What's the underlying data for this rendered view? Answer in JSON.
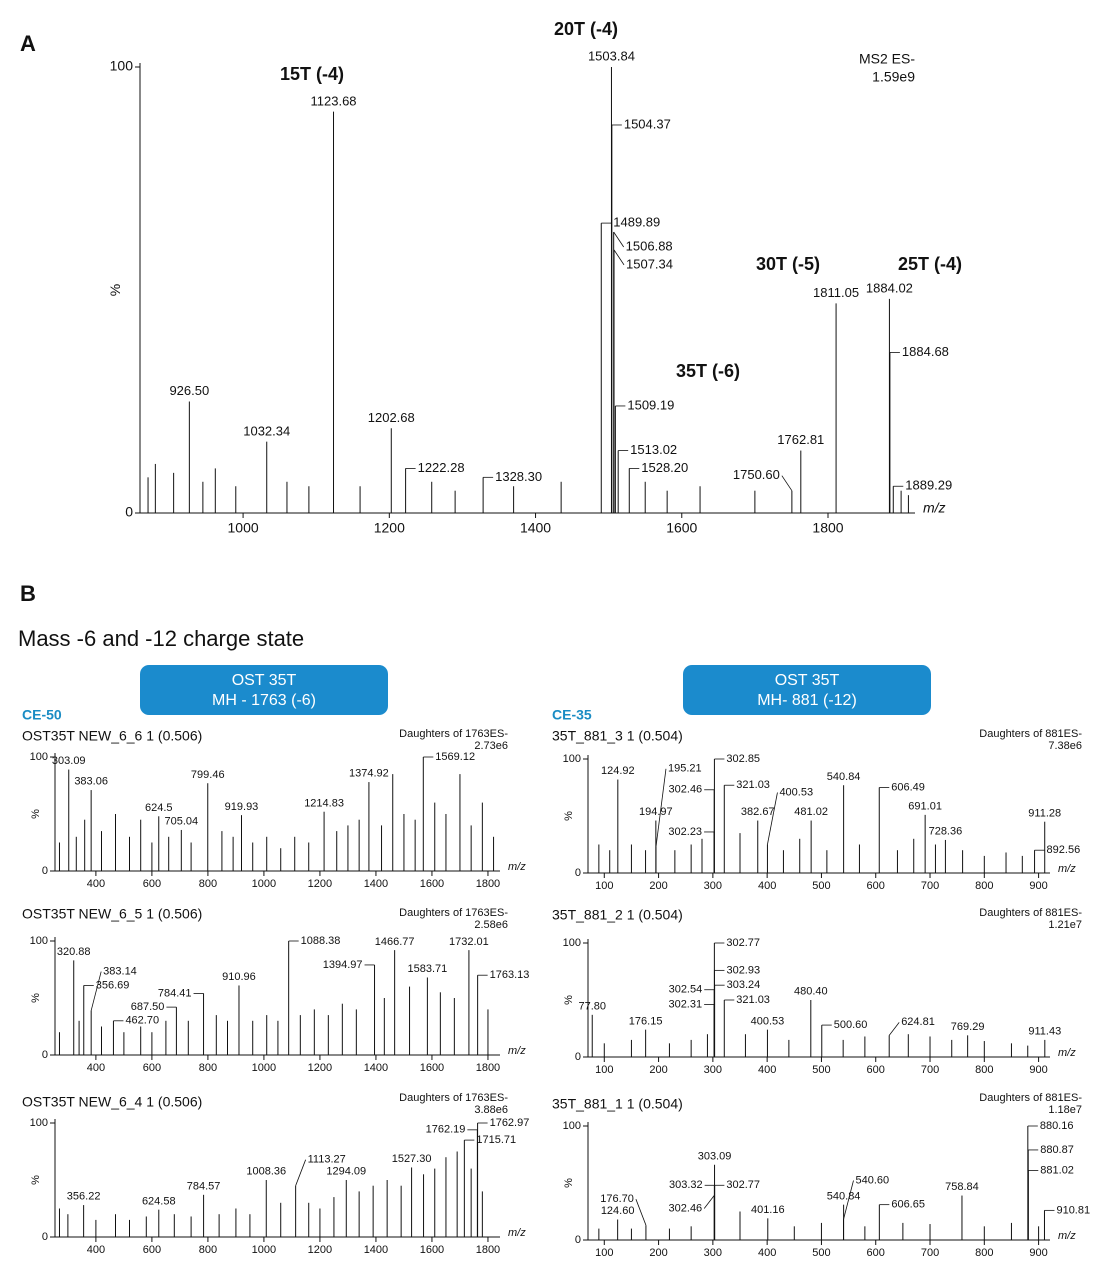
{
  "figure_labels": [
    "A",
    "B"
  ],
  "section_title": "Mass -6 and -12 charge state",
  "groups": [
    {
      "header": [
        "OST 35T",
        "MH - 1763 (-6)"
      ],
      "condition": "CE-50"
    },
    {
      "header": [
        "OST 35T",
        "MH- 881 (-12)"
      ],
      "condition": "CE-35"
    }
  ],
  "chart_data": [
    {
      "type": "spectrum",
      "info": [
        "MS2 ES-",
        "1.59e9"
      ],
      "annotations": [
        "15T (-4)",
        "20T (-4)",
        "30T (-5)",
        "25T (-4)",
        "35T (-6)"
      ],
      "annotation_color": "#1a8cc4",
      "xlabel": "m/z",
      "ylabel": "%",
      "color": "#111111",
      "xlim": [
        859,
        1919
      ],
      "xticks": [
        1000,
        1200,
        1400,
        1600,
        1800
      ],
      "ylim": [
        0,
        100
      ],
      "yticks": [
        0,
        100
      ],
      "x": [
        870,
        880,
        905,
        926.5,
        945,
        962,
        990,
        1032.34,
        1060,
        1090,
        1123.68,
        1160,
        1202.68,
        1222.28,
        1258,
        1290,
        1328.3,
        1370,
        1435,
        1489.89,
        1503.84,
        1504.37,
        1506.88,
        1507.34,
        1509.19,
        1513.02,
        1528.2,
        1550,
        1580,
        1625,
        1700,
        1750.6,
        1762.81,
        1811.05,
        1884.02,
        1884.68,
        1889.29,
        1900,
        1910
      ],
      "values": [
        8,
        11,
        9,
        25,
        7,
        10,
        6,
        16,
        7,
        6,
        90,
        6,
        19,
        10,
        7,
        5,
        8,
        6,
        7,
        65,
        100,
        87,
        63,
        59,
        24,
        14,
        10,
        7,
        5,
        6,
        5,
        5,
        14,
        47,
        48,
        36,
        6,
        5,
        4
      ],
      "peak_labels": [
        null,
        null,
        null,
        "926.50",
        null,
        null,
        null,
        "1032.34",
        null,
        null,
        "1123.68",
        null,
        "1202.68",
        "1222.28",
        null,
        null,
        "1328.30",
        null,
        null,
        "1489.89",
        "1503.84",
        "1504.37",
        "1506.88",
        "1507.34",
        "1509.19",
        "1513.02",
        "1528.20",
        null,
        null,
        null,
        null,
        "1750.60",
        "1762.81",
        "1811.05",
        "1884.02",
        "1884.68",
        "1889.29",
        null,
        null
      ]
    },
    {
      "type": "spectrum",
      "title": "OST35T NEW_6_6 1 (0.506)",
      "info": [
        "Daughters of 1763ES-",
        "2.73e6"
      ],
      "xlabel": "m/z",
      "ylabel": "%",
      "color": "#111111",
      "xlim": [
        254,
        1843
      ],
      "xticks": [
        400,
        600,
        800,
        1000,
        1200,
        1400,
        1600,
        1800
      ],
      "ylim": [
        0,
        100
      ],
      "yticks": [
        0,
        100
      ],
      "x": [
        270,
        303.09,
        330,
        360,
        383.06,
        420,
        470,
        520,
        560,
        600,
        624.5,
        660,
        705.04,
        740,
        799.46,
        850,
        890,
        919.93,
        960,
        1010,
        1060,
        1110,
        1160,
        1214.83,
        1260,
        1300,
        1340,
        1374.92,
        1420,
        1460,
        1500,
        1540,
        1569.12,
        1610,
        1650,
        1700,
        1740,
        1780,
        1820
      ],
      "values": [
        25,
        89,
        30,
        45,
        71,
        35,
        50,
        30,
        45,
        25,
        48,
        30,
        36,
        25,
        77,
        35,
        30,
        49,
        25,
        30,
        20,
        30,
        25,
        52,
        35,
        40,
        45,
        78,
        40,
        85,
        50,
        45,
        100,
        60,
        50,
        85,
        40,
        60,
        30
      ],
      "peak_labels": [
        null,
        "303.09",
        null,
        null,
        "383.06",
        null,
        null,
        null,
        null,
        null,
        "624.5",
        null,
        "705.04",
        null,
        "799.46",
        null,
        null,
        "919.93",
        null,
        null,
        null,
        null,
        null,
        "1214.83",
        null,
        null,
        null,
        "1374.92",
        null,
        null,
        null,
        null,
        "1569.12",
        null,
        null,
        null,
        null,
        null,
        null
      ]
    },
    {
      "type": "spectrum",
      "title": "OST35T NEW_6_5 1 (0.506)",
      "info": [
        "Daughters of 1763ES-",
        "2.58e6"
      ],
      "xlabel": "m/z",
      "ylabel": "%",
      "color": "#111111",
      "xlim": [
        254,
        1843
      ],
      "xticks": [
        400,
        600,
        800,
        1000,
        1200,
        1400,
        1600,
        1800
      ],
      "ylim": [
        0,
        100
      ],
      "yticks": [
        0,
        100
      ],
      "x": [
        270,
        320.88,
        340,
        356.69,
        383.14,
        420,
        462.7,
        500,
        560,
        600,
        650,
        687.5,
        730,
        784.41,
        830,
        870,
        910.96,
        960,
        1010,
        1050,
        1088.38,
        1130,
        1180,
        1230,
        1280,
        1330,
        1394.97,
        1430,
        1466.77,
        1520,
        1583.71,
        1630,
        1680,
        1732.01,
        1763.13,
        1800
      ],
      "values": [
        20,
        83,
        30,
        61,
        39,
        25,
        30,
        20,
        25,
        20,
        30,
        42,
        30,
        54,
        35,
        30,
        61,
        30,
        35,
        30,
        100,
        35,
        40,
        35,
        45,
        40,
        79,
        50,
        92,
        60,
        68,
        55,
        50,
        92,
        70,
        40
      ],
      "peak_labels": [
        null,
        "320.88",
        null,
        "356.69",
        "383.14",
        null,
        "462.70",
        null,
        null,
        null,
        null,
        "687.50",
        null,
        "784.41",
        null,
        null,
        "910.96",
        null,
        null,
        null,
        "1088.38",
        null,
        null,
        null,
        null,
        null,
        "1394.97",
        null,
        "1466.77",
        null,
        "1583.71",
        null,
        null,
        "1732.01",
        "1763.13",
        null
      ]
    },
    {
      "type": "spectrum",
      "title": "OST35T NEW_6_4 1 (0.506)",
      "info": [
        "Daughters of 1763ES-",
        "3.88e6"
      ],
      "xlabel": "m/z",
      "ylabel": "%",
      "color": "#111111",
      "xlim": [
        254,
        1843
      ],
      "xticks": [
        400,
        600,
        800,
        1000,
        1200,
        1400,
        1600,
        1800
      ],
      "ylim": [
        0,
        100
      ],
      "yticks": [
        0,
        100
      ],
      "x": [
        270,
        300,
        356.22,
        400,
        470,
        520,
        580,
        624.58,
        680,
        740,
        784.57,
        840,
        900,
        950,
        1008.36,
        1060,
        1113.27,
        1160,
        1200,
        1250,
        1294.09,
        1340,
        1390,
        1440,
        1490,
        1527.3,
        1570,
        1610,
        1650,
        1690,
        1715.71,
        1740,
        1762.19,
        1762.97,
        1780
      ],
      "values": [
        25,
        20,
        28,
        15,
        20,
        15,
        18,
        24,
        20,
        18,
        37,
        20,
        25,
        20,
        50,
        30,
        45,
        30,
        25,
        35,
        50,
        40,
        45,
        50,
        45,
        61,
        55,
        60,
        70,
        75,
        85,
        60,
        94,
        100,
        40
      ],
      "peak_labels": [
        null,
        null,
        "356.22",
        null,
        null,
        null,
        null,
        "624.58",
        null,
        null,
        "784.57",
        null,
        null,
        null,
        "1008.36",
        null,
        "1113.27",
        null,
        null,
        null,
        "1294.09",
        null,
        null,
        null,
        null,
        "1527.30",
        null,
        null,
        null,
        null,
        "1715.71",
        null,
        "1762.19",
        "1762.97",
        null
      ]
    },
    {
      "type": "spectrum",
      "title": "35T_881_3 1 (0.504)",
      "info": [
        "Daughters of 881ES-",
        "7.38e6"
      ],
      "xlabel": "m/z",
      "ylabel": "%",
      "color": "#111111",
      "xlim": [
        70,
        921
      ],
      "xticks": [
        100,
        200,
        300,
        400,
        500,
        600,
        700,
        800,
        900
      ],
      "ylim": [
        0,
        100
      ],
      "yticks": [
        0,
        100
      ],
      "x": [
        90,
        110,
        124.92,
        150,
        176,
        194.97,
        195.21,
        230,
        260,
        280,
        302.23,
        302.46,
        302.85,
        321.03,
        350,
        382.67,
        400.53,
        430,
        460,
        481.02,
        510,
        540.84,
        570,
        606.49,
        640,
        670,
        691.01,
        710,
        728.36,
        760,
        800,
        840,
        870,
        892.56,
        911.28
      ],
      "values": [
        25,
        20,
        82,
        25,
        20,
        46,
        23,
        20,
        25,
        30,
        36,
        73,
        100,
        77,
        35,
        46,
        25,
        20,
        30,
        46,
        20,
        77,
        25,
        75,
        20,
        30,
        51,
        25,
        29,
        20,
        15,
        18,
        15,
        20,
        45
      ],
      "peak_labels": [
        null,
        null,
        "124.92",
        null,
        null,
        "194.97",
        "195.21",
        null,
        null,
        null,
        "302.23",
        "302.46",
        "302.85",
        "321.03",
        null,
        "382.67",
        "400.53",
        null,
        null,
        "481.02",
        null,
        "540.84",
        null,
        "606.49",
        null,
        null,
        "691.01",
        null,
        "728.36",
        null,
        null,
        null,
        null,
        "892.56",
        "911.28"
      ]
    },
    {
      "type": "spectrum",
      "title": "35T_881_2 1 (0.504)",
      "info": [
        "Daughters of 881ES-",
        "1.21e7"
      ],
      "xlabel": "m/z",
      "ylabel": "%",
      "color": "#111111",
      "xlim": [
        70,
        921
      ],
      "xticks": [
        100,
        200,
        300,
        400,
        500,
        600,
        700,
        800,
        900
      ],
      "ylim": [
        0,
        100
      ],
      "yticks": [
        0,
        100
      ],
      "x": [
        77.8,
        100,
        150,
        176.15,
        220,
        260,
        290,
        302.31,
        302.54,
        302.77,
        302.93,
        303.24,
        321.03,
        360,
        400.53,
        440,
        480.4,
        500.6,
        540,
        580,
        624.81,
        660,
        700,
        740,
        769.29,
        800,
        850,
        880,
        911.43
      ],
      "values": [
        37,
        12,
        15,
        24,
        12,
        15,
        20,
        46,
        59,
        100,
        76,
        63,
        50,
        20,
        24,
        15,
        50,
        28,
        15,
        18,
        19,
        20,
        18,
        15,
        19,
        14,
        12,
        10,
        15
      ],
      "peak_labels": [
        "77.80",
        null,
        null,
        "176.15",
        null,
        null,
        null,
        "302.31",
        "302.54",
        "302.77",
        "302.93",
        "303.24",
        "321.03",
        null,
        "400.53",
        null,
        "480.40",
        "500.60",
        null,
        null,
        "624.81",
        null,
        null,
        null,
        "769.29",
        null,
        null,
        null,
        "911.43"
      ]
    },
    {
      "type": "spectrum",
      "title": "35T_881_1 1 (0.504)",
      "info": [
        "Daughters of 881ES-",
        "1.18e7"
      ],
      "xlabel": "m/z",
      "ylabel": "%",
      "color": "#111111",
      "xlim": [
        70,
        921
      ],
      "xticks": [
        100,
        200,
        300,
        400,
        500,
        600,
        700,
        800,
        900
      ],
      "ylim": [
        0,
        100
      ],
      "yticks": [
        0,
        100
      ],
      "x": [
        90,
        124.6,
        150,
        176.7,
        220,
        260,
        302.46,
        302.77,
        303.09,
        303.32,
        350,
        401.16,
        450,
        500,
        540.6,
        540.84,
        580,
        606.65,
        650,
        700,
        758.84,
        800,
        850,
        880.16,
        880.87,
        881.02,
        900,
        910.81
      ],
      "values": [
        10,
        18,
        10,
        13,
        10,
        12,
        39,
        48,
        66,
        48,
        25,
        19,
        12,
        15,
        18,
        31,
        12,
        31,
        15,
        14,
        39,
        12,
        15,
        100,
        79,
        61,
        12,
        26
      ],
      "peak_labels": [
        null,
        "124.60",
        null,
        "176.70",
        null,
        null,
        "302.46",
        "302.77",
        "303.09",
        "303.32",
        null,
        "401.16",
        null,
        null,
        "540.60",
        "540.84",
        null,
        "606.65",
        null,
        null,
        "758.84",
        null,
        null,
        "880.16",
        "880.87",
        "881.02",
        null,
        "910.81"
      ]
    }
  ]
}
